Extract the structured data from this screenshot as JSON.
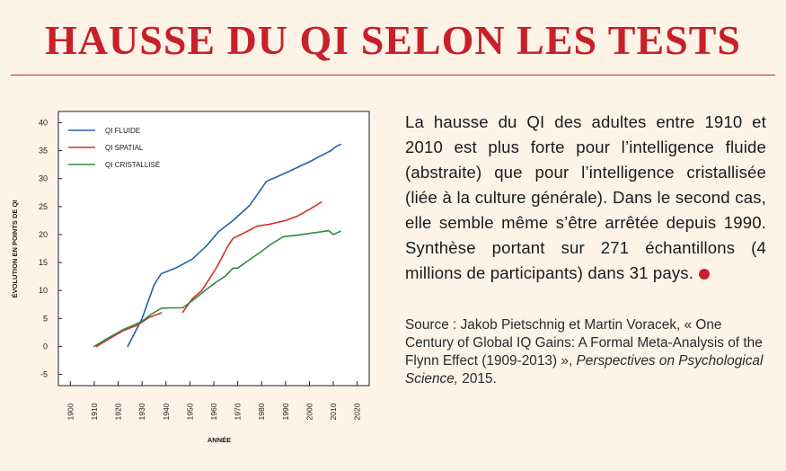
{
  "header": {
    "title": "HAUSSE DU QI SELON LES TESTS"
  },
  "text": {
    "description": "La hausse du QI des adultes entre 1910 et 2010 est plus forte pour l’intelligence fluide (abstraite) que pour l’intelligence cristallisée (liée à la culture générale). Dans le second cas, elle semble même s’être arrêtée depuis 1990. Synthèse portant sur 271 échantillons (4 millions de participants) dans 31 pays.",
    "source_prefix": "Source : Jakob Pietschnig et Martin Voracek, « One Century of Global IQ Gains: A Formal Meta-Analysis of the Flynn Effect (1909-2013) », ",
    "source_journal": "Perspectives on Psychological Science,",
    "source_year": " 2015."
  },
  "colors": {
    "accent": "#c8202a",
    "background": "#fdf3e7",
    "plot_background": "#ffffff",
    "fluide": "#1f63a8",
    "spatial": "#d13229",
    "cristallise": "#2e8b3e"
  },
  "chart_data": {
    "type": "line",
    "title": "",
    "xlabel": "ANNÉE",
    "ylabel": "ÉVOLUTION EN POINTS DE QI",
    "xlim": [
      1895,
      2025
    ],
    "ylim": [
      -7,
      42
    ],
    "x_ticks": [
      1900,
      1910,
      1920,
      1930,
      1940,
      1950,
      1960,
      1970,
      1980,
      1990,
      2000,
      2010,
      2020
    ],
    "y_ticks": [
      -5,
      0,
      5,
      10,
      15,
      20,
      25,
      30,
      35,
      40
    ],
    "legend_position": "top-left",
    "grid": false,
    "series": [
      {
        "name": "QI FLUIDE",
        "color": "#1f63a8",
        "points": [
          [
            1924,
            0
          ],
          [
            1930,
            5
          ],
          [
            1935,
            11
          ],
          [
            1938,
            13
          ],
          [
            1944,
            14
          ],
          [
            1951,
            15.6
          ],
          [
            1957,
            18
          ],
          [
            1962,
            20.5
          ],
          [
            1968,
            22.5
          ],
          [
            1975,
            25.2
          ],
          [
            1982,
            29.5
          ],
          [
            1990,
            31
          ],
          [
            2000,
            33
          ],
          [
            2009,
            35
          ],
          [
            2011,
            35.7
          ],
          [
            2013,
            36.1
          ]
        ]
      },
      {
        "name": "QI SPATIAL",
        "color": "#d13229",
        "segments": [
          [
            [
              1911,
              0
            ],
            [
              1916,
              1.3
            ],
            [
              1922,
              2.8
            ],
            [
              1928,
              3.8
            ],
            [
              1933,
              5.2
            ],
            [
              1938,
              6
            ]
          ],
          [
            [
              1947,
              6.1
            ],
            [
              1949,
              7.3
            ],
            [
              1951,
              8.5
            ],
            [
              1955,
              10
            ],
            [
              1961,
              14
            ],
            [
              1966,
              18
            ],
            [
              1968,
              19.3
            ],
            [
              1975,
              20.8
            ],
            [
              1978,
              21.5
            ],
            [
              1983,
              21.8
            ],
            [
              1990,
              22.5
            ],
            [
              1995,
              23.3
            ],
            [
              2000,
              24.5
            ],
            [
              2005,
              25.8
            ]
          ]
        ]
      },
      {
        "name": "QI CRISTALLISÉ",
        "color": "#2e8b3e",
        "points": [
          [
            1910,
            0
          ],
          [
            1915,
            1.3
          ],
          [
            1922,
            3
          ],
          [
            1926,
            3.7
          ],
          [
            1930,
            4.5
          ],
          [
            1934,
            5.8
          ],
          [
            1938,
            6.8
          ],
          [
            1942,
            6.9
          ],
          [
            1947,
            6.9
          ],
          [
            1952,
            8.5
          ],
          [
            1957,
            10.2
          ],
          [
            1961,
            11.5
          ],
          [
            1965,
            12.6
          ],
          [
            1968,
            14
          ],
          [
            1970,
            14
          ],
          [
            1975,
            15.5
          ],
          [
            1980,
            17
          ],
          [
            1984,
            18.3
          ],
          [
            1989,
            19.6
          ],
          [
            1995,
            19.9
          ],
          [
            2000,
            20.2
          ],
          [
            2005,
            20.5
          ],
          [
            2008,
            20.7
          ],
          [
            2010,
            20
          ],
          [
            2013,
            20.6
          ]
        ]
      }
    ]
  }
}
